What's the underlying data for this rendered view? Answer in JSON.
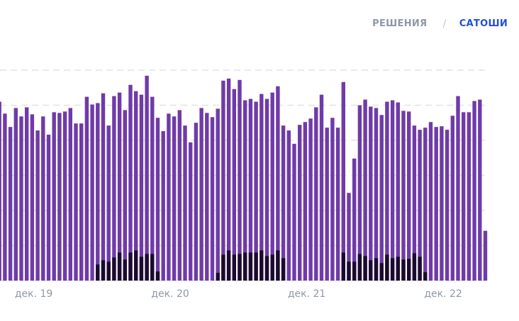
{
  "toggle": {
    "options": [
      "РЕШЕНИЯ",
      "САТОШИ"
    ],
    "active_index": 1,
    "separator": "/"
  },
  "colors": {
    "primary_series": "#6f3ba8",
    "secondary_series": "#1a0b2e",
    "inactive_text": "#8e98a6",
    "active_text": "#1f4fd6",
    "grid": "#e3e3e3",
    "tick_text": "#8e98a6"
  },
  "chart_data": {
    "type": "bar",
    "stacking": "overlay",
    "grid": true,
    "grid_style": "dashed horizontal",
    "ylim": [
      0,
      305
    ],
    "x_tick_labels": [
      "дек. 19",
      "дек. 20",
      "дек. 21",
      "дек. 22"
    ],
    "x_tick_bar_index": [
      2,
      27,
      52,
      77
    ],
    "series": [
      {
        "values": [
          255,
          238,
          219,
          246,
          234,
          247,
          237,
          214,
          234,
          208,
          240,
          239,
          241,
          246,
          224,
          224,
          262,
          251,
          253,
          267,
          221,
          263,
          268,
          243,
          279,
          270,
          265,
          292,
          262,
          232,
          213,
          238,
          234,
          243,
          221,
          197,
          225,
          246,
          239,
          233,
          245,
          285,
          288,
          273,
          286,
          257,
          259,
          255,
          266,
          259,
          268,
          277,
          221,
          214,
          195,
          222,
          226,
          231,
          247,
          265,
          218,
          232,
          218,
          283,
          125,
          174,
          250,
          258,
          248,
          246,
          236,
          255,
          257,
          254,
          242,
          241,
          221,
          215,
          218,
          226,
          219,
          220,
          215,
          235,
          263,
          240,
          240,
          256,
          258,
          71
        ],
        "secondary_values": [
          0,
          0,
          0,
          0,
          0,
          0,
          0,
          0,
          0,
          0,
          0,
          0,
          0,
          0,
          0,
          0,
          0,
          0,
          23,
          29,
          27,
          33,
          40,
          30,
          40,
          43,
          34,
          38,
          38,
          13,
          0,
          0,
          0,
          0,
          0,
          0,
          0,
          0,
          0,
          0,
          11,
          37,
          43,
          37,
          38,
          40,
          40,
          40,
          43,
          35,
          37,
          43,
          32,
          0,
          0,
          0,
          0,
          0,
          0,
          0,
          0,
          0,
          0,
          40,
          27,
          27,
          38,
          35,
          29,
          32,
          25,
          37,
          32,
          34,
          30,
          31,
          39,
          34,
          12,
          0,
          0,
          0,
          0,
          0,
          0,
          0,
          0,
          0,
          0,
          0
        ]
      }
    ]
  }
}
